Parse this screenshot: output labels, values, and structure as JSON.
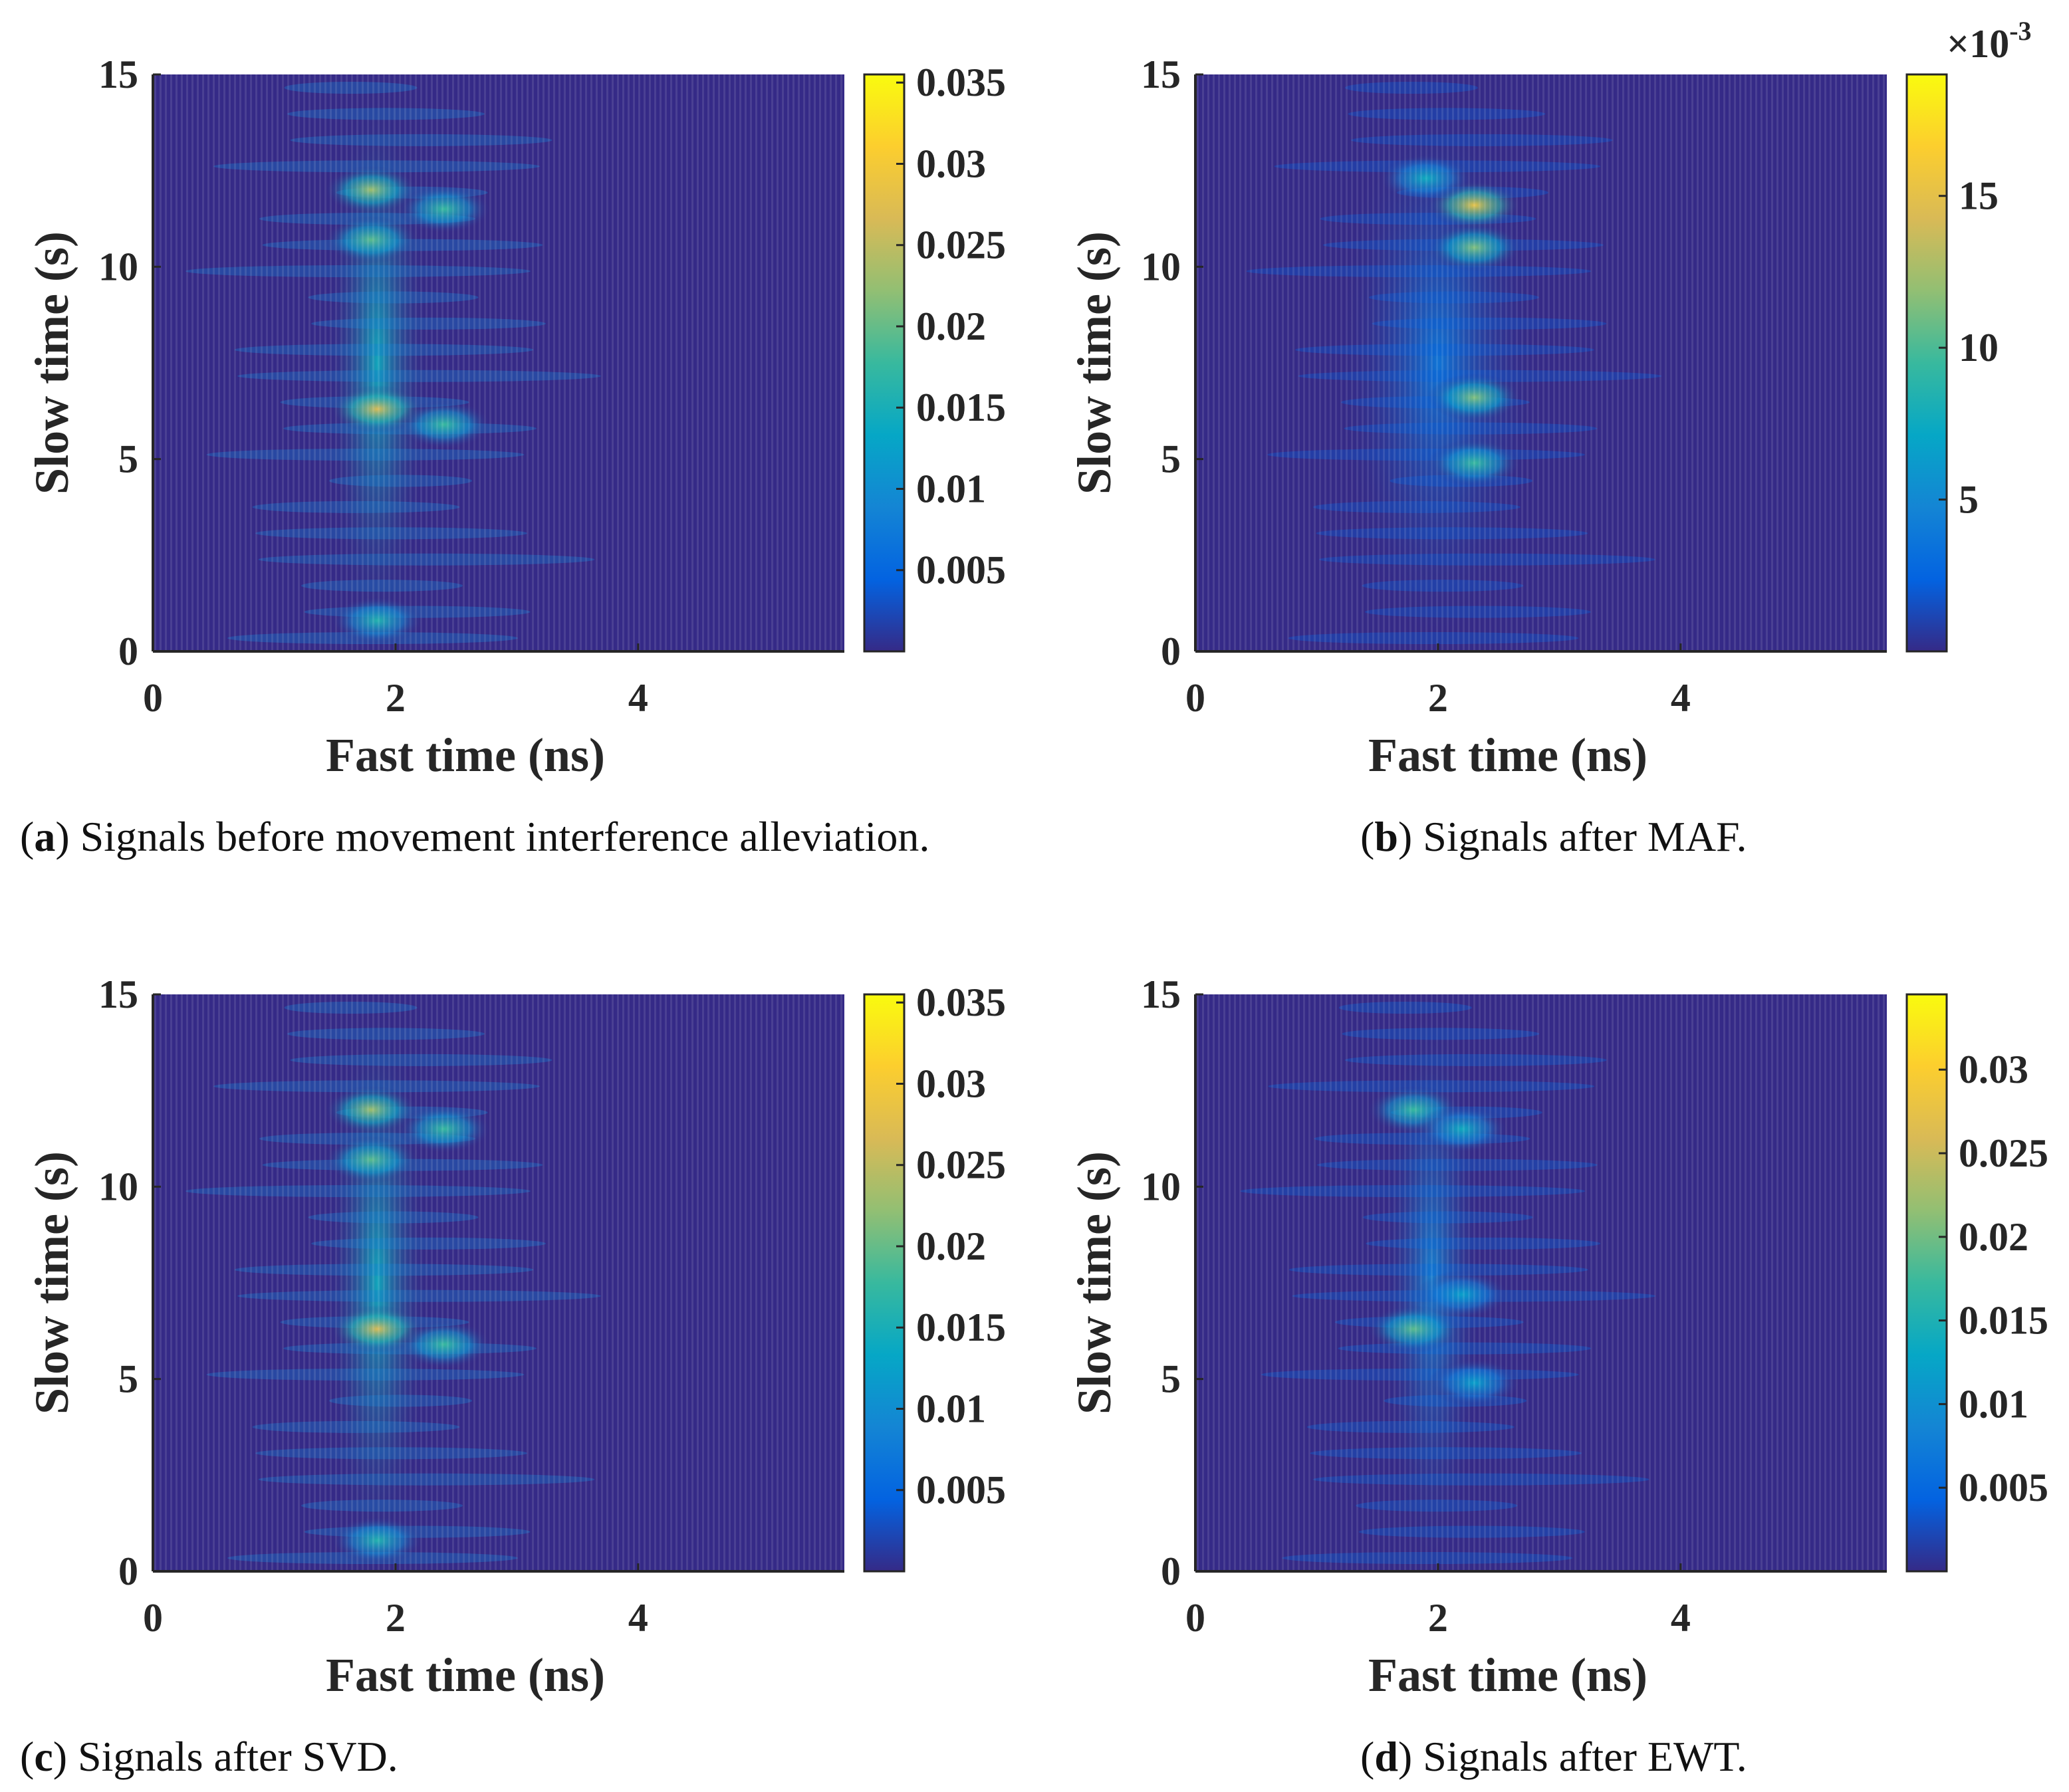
{
  "colors": {
    "background": "#352a87",
    "bright_band": "#1f8fe0",
    "hotspot": "#f2c330",
    "axis": "#262626",
    "parula": [
      "#352a87",
      "#0363e1",
      "#1485d4",
      "#06a7c6",
      "#38b99e",
      "#92bf73",
      "#d9ba56",
      "#fcce2e",
      "#f9fb0e"
    ]
  },
  "chart_data": [
    {
      "id": "a",
      "type": "heatmap",
      "caption_letter": "a",
      "caption_text": " Signals before movement interference alleviation.",
      "xlabel": "Fast time (ns)",
      "ylabel": "Slow time (s)",
      "xlim": [
        0,
        5.7
      ],
      "ylim": [
        0,
        15
      ],
      "xticks": [
        "0",
        "2",
        "4"
      ],
      "xtick_values": [
        0,
        2,
        4
      ],
      "yticks": [
        "0",
        "5",
        "10",
        "15"
      ],
      "ytick_values": [
        0,
        5,
        10,
        15
      ],
      "colorbar_ticks": [
        "0.005",
        "0.01",
        "0.015",
        "0.02",
        "0.025",
        "0.03",
        "0.035"
      ],
      "colorbar_values": [
        0.005,
        0.01,
        0.015,
        0.02,
        0.025,
        0.03,
        0.035
      ],
      "colorbar_range": [
        0,
        0.0355
      ],
      "colorbar_exponent": "",
      "band_center_ns": 1.85,
      "band_width_ns": 0.35,
      "band_level": 0.4,
      "hotspots": [
        {
          "x": 1.8,
          "y": 12.0,
          "level": 0.65
        },
        {
          "x": 1.8,
          "y": 10.7,
          "level": 0.55
        },
        {
          "x": 1.85,
          "y": 6.3,
          "level": 0.75
        },
        {
          "x": 2.4,
          "y": 11.5,
          "level": 0.5
        },
        {
          "x": 2.4,
          "y": 5.9,
          "level": 0.5
        },
        {
          "x": 1.85,
          "y": 0.8,
          "level": 0.45
        }
      ]
    },
    {
      "id": "b",
      "type": "heatmap",
      "caption_letter": "b",
      "caption_text": " Signals after MAF.",
      "xlabel": "Fast time (ns)",
      "ylabel": "Slow time (s)",
      "xlim": [
        0,
        5.7
      ],
      "ylim": [
        0,
        15
      ],
      "xticks": [
        "0",
        "2",
        "4"
      ],
      "xtick_values": [
        0,
        2,
        4
      ],
      "yticks": [
        "0",
        "5",
        "10",
        "15"
      ],
      "ytick_values": [
        0,
        5,
        10,
        15
      ],
      "colorbar_ticks": [
        "5",
        "10",
        "15"
      ],
      "colorbar_values": [
        5,
        10,
        15
      ],
      "colorbar_range": [
        0,
        19
      ],
      "colorbar_exponent": "×10-3",
      "band_center_ns": 2.0,
      "band_width_ns": 0.7,
      "band_level": 0.2,
      "hotspots": [
        {
          "x": 2.3,
          "y": 11.6,
          "level": 0.8
        },
        {
          "x": 2.3,
          "y": 10.5,
          "level": 0.6
        },
        {
          "x": 2.3,
          "y": 6.6,
          "level": 0.6
        },
        {
          "x": 2.3,
          "y": 4.9,
          "level": 0.5
        },
        {
          "x": 1.9,
          "y": 12.3,
          "level": 0.4
        }
      ]
    },
    {
      "id": "c",
      "type": "heatmap",
      "caption_letter": "c",
      "caption_text": " Signals after SVD.",
      "xlabel": "Fast time (ns)",
      "ylabel": "Slow time (s)",
      "xlim": [
        0,
        5.7
      ],
      "ylim": [
        0,
        15
      ],
      "xticks": [
        "0",
        "2",
        "4"
      ],
      "xtick_values": [
        0,
        2,
        4
      ],
      "yticks": [
        "0",
        "5",
        "10",
        "15"
      ],
      "ytick_values": [
        0,
        5,
        10,
        15
      ],
      "colorbar_ticks": [
        "0.005",
        "0.01",
        "0.015",
        "0.02",
        "0.025",
        "0.03",
        "0.035"
      ],
      "colorbar_values": [
        0.005,
        0.01,
        0.015,
        0.02,
        0.025,
        0.03,
        0.035
      ],
      "colorbar_range": [
        0,
        0.0355
      ],
      "colorbar_exponent": "",
      "band_center_ns": 1.85,
      "band_width_ns": 0.35,
      "band_level": 0.4,
      "hotspots": [
        {
          "x": 1.8,
          "y": 12.0,
          "level": 0.65
        },
        {
          "x": 1.8,
          "y": 10.7,
          "level": 0.55
        },
        {
          "x": 1.85,
          "y": 6.3,
          "level": 0.75
        },
        {
          "x": 2.4,
          "y": 11.5,
          "level": 0.5
        },
        {
          "x": 2.4,
          "y": 5.9,
          "level": 0.5
        },
        {
          "x": 1.85,
          "y": 0.8,
          "level": 0.45
        }
      ]
    },
    {
      "id": "d",
      "type": "heatmap",
      "caption_letter": "d",
      "caption_text": " Signals after EWT.",
      "xlabel": "Fast time (ns)",
      "ylabel": "Slow time (s)",
      "xlim": [
        0,
        5.7
      ],
      "ylim": [
        0,
        15
      ],
      "xticks": [
        "0",
        "2",
        "4"
      ],
      "xtick_values": [
        0,
        2,
        4
      ],
      "yticks": [
        "0",
        "5",
        "10",
        "15"
      ],
      "ytick_values": [
        0,
        5,
        10,
        15
      ],
      "colorbar_ticks": [
        "0.005",
        "0.01",
        "0.015",
        "0.02",
        "0.025",
        "0.03"
      ],
      "colorbar_values": [
        0.005,
        0.01,
        0.015,
        0.02,
        0.025,
        0.03
      ],
      "colorbar_range": [
        0,
        0.0345
      ],
      "colorbar_exponent": "",
      "band_center_ns": 1.95,
      "band_width_ns": 0.35,
      "band_level": 0.25,
      "hotspots": [
        {
          "x": 1.8,
          "y": 12.0,
          "level": 0.5
        },
        {
          "x": 1.8,
          "y": 6.3,
          "level": 0.55
        },
        {
          "x": 2.2,
          "y": 11.5,
          "level": 0.4
        },
        {
          "x": 2.2,
          "y": 7.2,
          "level": 0.35
        },
        {
          "x": 2.3,
          "y": 4.9,
          "level": 0.35
        }
      ]
    }
  ]
}
